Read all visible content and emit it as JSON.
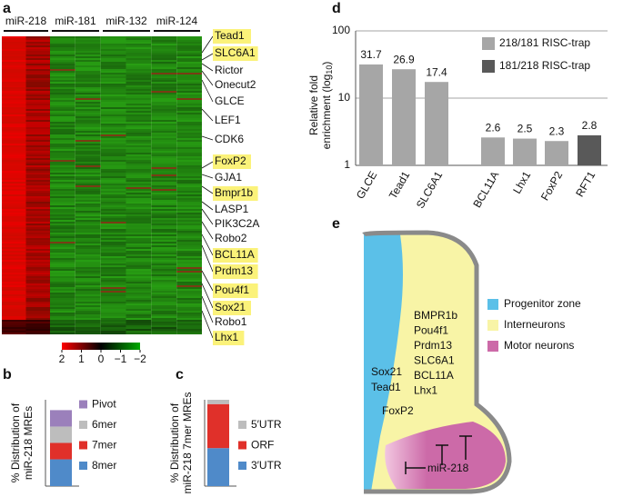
{
  "panel_letters": [
    "a",
    "b",
    "c",
    "d",
    "e"
  ],
  "heatmap": {
    "columns": [
      "miR-218",
      "miR-181",
      "miR-132",
      "miR-124"
    ],
    "genes": [
      {
        "label": "Tead1",
        "highlight": true
      },
      {
        "label": "SLC6A1",
        "highlight": true
      },
      {
        "label": "Rictor",
        "highlight": false
      },
      {
        "label": "Onecut2",
        "highlight": false
      },
      {
        "label": "GLCE",
        "highlight": false
      },
      {
        "label": "LEF1",
        "highlight": false
      },
      {
        "label": "CDK6",
        "highlight": false
      },
      {
        "label": "FoxP2",
        "highlight": true
      },
      {
        "label": "GJA1",
        "highlight": false
      },
      {
        "label": "Bmpr1b",
        "highlight": true
      },
      {
        "label": "LASP1",
        "highlight": false
      },
      {
        "label": "PIK3C2A",
        "highlight": false
      },
      {
        "label": "Robo2",
        "highlight": false
      },
      {
        "label": "BCL11A",
        "highlight": true
      },
      {
        "label": "Prdm13",
        "highlight": true
      },
      {
        "label": "Pou4f1",
        "highlight": true
      },
      {
        "label": "Sox21",
        "highlight": true
      },
      {
        "label": "Robo1",
        "highlight": false
      },
      {
        "label": "Lhx1",
        "highlight": true
      }
    ],
    "scale_ticks": [
      2,
      1,
      0,
      {
        "value": -1,
        "label": "−1"
      },
      {
        "value": -2,
        "label": "−2"
      }
    ]
  },
  "chart_data": [
    {
      "type": "stacked_bar",
      "ylabel": [
        "% Distribution of",
        "miR-218 MREs"
      ],
      "ylim": [
        0,
        100
      ],
      "series": [
        {
          "name": "8mer",
          "color": "#4f8ac9",
          "values": [
            31
          ]
        },
        {
          "name": "7mer",
          "color": "#e0302a",
          "values": [
            19
          ]
        },
        {
          "name": "6mer",
          "color": "#bdbdbd",
          "values": [
            19
          ]
        },
        {
          "name": "Pivot",
          "color": "#9b80bb",
          "values": [
            19
          ]
        }
      ]
    },
    {
      "type": "stacked_bar",
      "ylabel": [
        "% Distribution of",
        "miR-218 7mer MREs"
      ],
      "ylim": [
        0,
        100
      ],
      "series": [
        {
          "name": "3′UTR",
          "color": "#4f8ac9",
          "values": [
            44
          ]
        },
        {
          "name": "ORF",
          "color": "#e0302a",
          "values": [
            51
          ]
        },
        {
          "name": "5′UTR",
          "color": "#bdbdbd",
          "values": [
            5
          ]
        }
      ]
    },
    {
      "type": "bar",
      "ylabel": [
        "Relative fold",
        "enrichment (log",
        "10",
        ")"
      ],
      "log_scale": true,
      "ylim": [
        1,
        100
      ],
      "yticks": [
        1,
        10,
        100
      ],
      "grid": true,
      "legend": "top-right",
      "categories": [
        "GLCE",
        "Tead1",
        "SLC6A1",
        "BCL11A",
        "Lhx1",
        "FoxP2",
        "RFT1"
      ],
      "series": [
        {
          "name": "218/181 RISC-trap",
          "color": "#a6a6a6",
          "values": [
            31.7,
            26.9,
            17.4,
            2.6,
            2.5,
            2.3,
            null
          ]
        },
        {
          "name": "181/218 RISC-trap",
          "color": "#595959",
          "values": [
            null,
            null,
            null,
            null,
            null,
            null,
            2.8
          ]
        }
      ]
    }
  ],
  "diagram": {
    "legend": [
      "Progenitor zone",
      "Interneurons",
      "Motor neurons"
    ],
    "interneuron_genes": [
      "BMPR1b",
      "Pou4f1",
      "Prdm13",
      "SLC6A1",
      "BCL11A",
      "Lhx1"
    ],
    "progenitor_genes": [
      "Sox21",
      "Tead1"
    ],
    "other_gene": "FoxP2",
    "mirna": "miR-218"
  }
}
